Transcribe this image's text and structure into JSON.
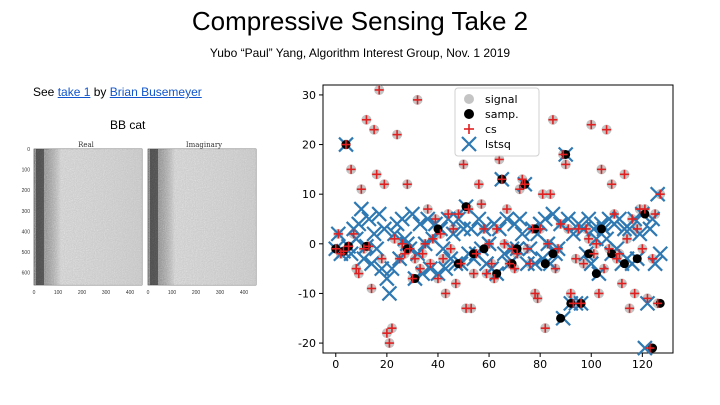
{
  "slide": {
    "title": "Compressive Sensing Take 2",
    "subtitle": "Yubo “Paul” Yang, Algorithm Interest Group, Nov. 1  2019",
    "see_prefix": "See ",
    "link1": "take 1",
    "by_text": " by ",
    "link2": "Brian Busemeyer",
    "bbcat_label": "BB cat"
  },
  "image_panel": {
    "panel_titles": [
      "Real",
      "Imaginary"
    ],
    "y_ticks": [
      "0",
      "100",
      "200",
      "300",
      "400",
      "500",
      "600"
    ],
    "x_ticks": [
      "0",
      "100",
      "200",
      "300",
      "400"
    ]
  },
  "chart_data": {
    "type": "scatter",
    "xlim": [
      -5,
      132
    ],
    "ylim": [
      -22,
      32
    ],
    "x_ticks": [
      0,
      20,
      40,
      60,
      80,
      100,
      120
    ],
    "y_ticks": [
      -20,
      -10,
      0,
      10,
      20,
      30
    ],
    "legend": {
      "placement": "top-center",
      "entries": [
        "signal",
        "samp.",
        "cs",
        "lstsq"
      ]
    },
    "colors": {
      "signal": "#b0b0b0",
      "samp": "#000000",
      "cs": "#e02020",
      "lstsq": "#2f79b3"
    },
    "signal_x": [
      0,
      1,
      2,
      3,
      4,
      5,
      6,
      7,
      8,
      9,
      10,
      11,
      12,
      13,
      14,
      15,
      16,
      17,
      18,
      19,
      20,
      21,
      22,
      23,
      24,
      25,
      26,
      27,
      28,
      29,
      30,
      31,
      32,
      33,
      34,
      35,
      36,
      37,
      38,
      39,
      40,
      41,
      42,
      43,
      44,
      45,
      46,
      47,
      48,
      49,
      50,
      51,
      52,
      53,
      54,
      55,
      56,
      57,
      58,
      59,
      60,
      61,
      62,
      63,
      64,
      65,
      66,
      67,
      68,
      69,
      70,
      71,
      72,
      73,
      74,
      75,
      76,
      77,
      78,
      79,
      80,
      81,
      82,
      83,
      84,
      85,
      86,
      87,
      88,
      89,
      90,
      91,
      92,
      93,
      94,
      95,
      96,
      97,
      98,
      99,
      100,
      101,
      102,
      103,
      104,
      105,
      106,
      107,
      108,
      109,
      110,
      111,
      112,
      113,
      114,
      115,
      116,
      117,
      118,
      119,
      120,
      121,
      122,
      123,
      124,
      125,
      126,
      127
    ],
    "signal_y": [
      -1,
      2,
      -2,
      -1.5,
      20,
      -0.5,
      15,
      2,
      -5,
      -6,
      11,
      -1,
      25,
      -0.5,
      -9,
      23,
      14,
      31,
      -3,
      12,
      -18,
      -20,
      -17,
      1,
      22,
      -3,
      0,
      -2,
      12,
      -1,
      -7,
      -3,
      29,
      -5,
      -2,
      0,
      7,
      -4,
      1,
      5,
      -7,
      2,
      -3,
      -10,
      6,
      -1,
      3,
      -8,
      6,
      -4,
      16,
      -13,
      7,
      -13,
      -6,
      -2,
      12,
      8,
      3,
      -6,
      0,
      -4,
      -7,
      3,
      17,
      13,
      0,
      7,
      -4,
      -1,
      -5,
      -2,
      11,
      13,
      12,
      -1,
      -4,
      3,
      -10,
      -11,
      3,
      10,
      -17,
      0,
      10,
      25,
      -5,
      -1,
      4,
      18,
      16,
      3,
      -10,
      -12,
      -3,
      3,
      -12,
      -4,
      3,
      1,
      24,
      -2,
      0,
      -10,
      15,
      -5,
      23,
      -1,
      12,
      6,
      -3,
      -2,
      -8,
      14,
      1,
      -13,
      5,
      -10,
      3,
      7,
      -1,
      7,
      -11,
      -21,
      -3,
      6,
      -12,
      10,
      -6,
      -2,
      1,
      10
    ],
    "samp_x": [
      0,
      3,
      4,
      5,
      12,
      28,
      31,
      40,
      48,
      51,
      54,
      58,
      63,
      65,
      69,
      71,
      74,
      78,
      82,
      85,
      88,
      90,
      92,
      96,
      99,
      102,
      104,
      108,
      113,
      118,
      121,
      124,
      127
    ],
    "samp_y": [
      -1,
      -1.5,
      20,
      -0.5,
      -0.5,
      -1,
      -7,
      3,
      -4,
      7.5,
      -2,
      -1,
      -6,
      13,
      -4,
      -1,
      12,
      3,
      -4,
      -2,
      -15,
      18,
      -12,
      -12,
      -2,
      -6,
      3,
      -2,
      -4,
      -3,
      6,
      -21,
      -12
    ],
    "cs_x": [
      0,
      1,
      2,
      3,
      4,
      5,
      6,
      7,
      8,
      9,
      10,
      11,
      12,
      13,
      14,
      15,
      16,
      17,
      18,
      19,
      20,
      21,
      22,
      23,
      24,
      25,
      26,
      27,
      28,
      29,
      30,
      31,
      32,
      33,
      34,
      35,
      36,
      37,
      38,
      39,
      40,
      41,
      42,
      43,
      44,
      45,
      46,
      47,
      48,
      49,
      50,
      51,
      52,
      53,
      54,
      55,
      56,
      57,
      58,
      59,
      60,
      61,
      62,
      63,
      64,
      65,
      66,
      67,
      68,
      69,
      70,
      71,
      72,
      73,
      74,
      75,
      76,
      77,
      78,
      79,
      80,
      81,
      82,
      83,
      84,
      85,
      86,
      87,
      88,
      89,
      90,
      91,
      92,
      93,
      94,
      95,
      96,
      97,
      98,
      99,
      100,
      101,
      102,
      103,
      104,
      105,
      106,
      107,
      108,
      109,
      110,
      111,
      112,
      113,
      114,
      115,
      116,
      117,
      118,
      119,
      120,
      121,
      122,
      123,
      124,
      125,
      126,
      127
    ],
    "cs_y": [
      -1,
      2,
      -2,
      -1.5,
      20,
      -0.5,
      15,
      2,
      -5,
      -6,
      11,
      -1,
      25,
      -0.5,
      -9,
      23,
      14,
      31,
      -3,
      12,
      -18,
      -20,
      -17,
      1,
      22,
      -3,
      0,
      -2,
      12,
      -1,
      -7,
      -3,
      29,
      -5,
      -2,
      0,
      7,
      -4,
      1,
      5,
      -7,
      2,
      -3,
      -10,
      6,
      -1,
      3,
      -8,
      6,
      -4,
      16,
      -13,
      7,
      -13,
      -6,
      -2,
      12,
      8,
      3,
      -6,
      0,
      -4,
      -7,
      3,
      17,
      13,
      0,
      7,
      -4,
      -1,
      -5,
      -2,
      11,
      13,
      12,
      -1,
      -4,
      3,
      -10,
      -11,
      3,
      10,
      -17,
      0,
      10,
      25,
      -5,
      -1,
      4,
      18,
      16,
      3,
      -10,
      -12,
      -3,
      3,
      -12,
      -4,
      3,
      1,
      24,
      -2,
      0,
      -10,
      15,
      -5,
      23,
      -1,
      12,
      6,
      -3,
      -2,
      -8,
      14,
      1,
      -13,
      5,
      -10,
      3,
      7,
      -1,
      7,
      -11,
      -21,
      -3,
      6,
      -12,
      10,
      -6,
      -2,
      1,
      10
    ],
    "lstsq_x": [
      0,
      1,
      2,
      3,
      4,
      5,
      6,
      7,
      8,
      9,
      10,
      11,
      12,
      13,
      14,
      15,
      16,
      17,
      18,
      19,
      20,
      21,
      22,
      23,
      24,
      25,
      26,
      27,
      28,
      29,
      30,
      31,
      32,
      33,
      34,
      35,
      36,
      37,
      38,
      39,
      40,
      41,
      42,
      43,
      44,
      45,
      46,
      47,
      48,
      49,
      50,
      51,
      52,
      53,
      54,
      55,
      56,
      57,
      58,
      59,
      60,
      61,
      62,
      63,
      64,
      65,
      66,
      67,
      68,
      69,
      70,
      71,
      72,
      73,
      74,
      75,
      76,
      77,
      78,
      79,
      80,
      81,
      82,
      83,
      84,
      85,
      86,
      87,
      88,
      89,
      90,
      91,
      92,
      93,
      94,
      95,
      96,
      97,
      98,
      99,
      100,
      101,
      102,
      103,
      104,
      105,
      106,
      107,
      108,
      109,
      110,
      111,
      112,
      113,
      114,
      115,
      116,
      117,
      118,
      119,
      120,
      121,
      122,
      123,
      124,
      125,
      126,
      127
    ],
    "lstsq_y": [
      -1,
      2,
      -2,
      -1.5,
      20,
      -0.5,
      -2,
      3,
      1,
      4,
      7,
      -3,
      -0.5,
      5,
      -4,
      2,
      -1,
      6,
      -5,
      3,
      -7,
      -10,
      -5,
      2,
      4,
      -3,
      5,
      1,
      0,
      -1,
      6,
      -7,
      -2,
      4,
      -6,
      0,
      5,
      -5,
      1,
      4,
      -6,
      3,
      -1,
      -5,
      5,
      -3,
      2,
      -4,
      5,
      -4,
      3,
      7.5,
      -2,
      3,
      -3,
      -2,
      5,
      -1,
      3,
      -4,
      0,
      -5,
      4,
      -6,
      3,
      13,
      -2,
      5,
      -4,
      -1,
      4,
      -1,
      5,
      2,
      12,
      -4,
      -1,
      3,
      -4,
      2,
      4,
      -3,
      5,
      0,
      -4,
      6,
      -2,
      -1,
      4,
      -15,
      18,
      5,
      -12,
      2,
      -12,
      4,
      -12,
      3,
      -2,
      5,
      -4,
      3,
      1,
      -6,
      4,
      3,
      1,
      5,
      -2,
      4,
      -1,
      5,
      -4,
      3,
      -3,
      3,
      -4,
      5,
      -3,
      2,
      6,
      -21,
      -12,
      3,
      5,
      -4,
      10,
      -2
    ]
  }
}
